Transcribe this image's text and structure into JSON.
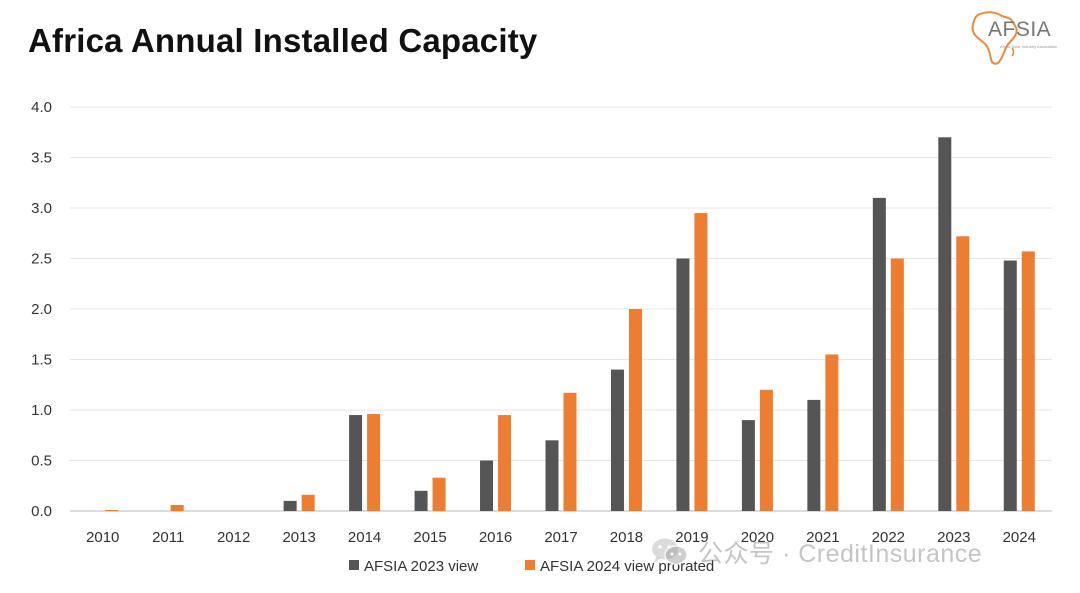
{
  "chart_data": {
    "type": "bar",
    "title": "Africa Annual Installed Capacity",
    "xlabel": "",
    "ylabel": "",
    "categories": [
      "2010",
      "2011",
      "2012",
      "2013",
      "2014",
      "2015",
      "2016",
      "2017",
      "2018",
      "2019",
      "2020",
      "2021",
      "2022",
      "2023",
      "2024"
    ],
    "series": [
      {
        "name": "AFSIA 2023 view",
        "color": "#555555",
        "values": [
          0,
          0,
          0,
          0.1,
          0.95,
          0.2,
          0.5,
          0.7,
          1.4,
          2.5,
          0.9,
          1.1,
          3.1,
          3.7,
          2.48
        ]
      },
      {
        "name": "AFSIA 2024 view prorated",
        "color": "#ED7D31",
        "values": [
          0.01,
          0.06,
          0,
          0.16,
          0.96,
          0.33,
          0.95,
          1.17,
          2.0,
          2.95,
          1.2,
          1.55,
          2.5,
          2.72,
          2.57
        ]
      }
    ],
    "ylim": [
      0,
      4.0
    ],
    "yticks": [
      "0.0",
      "0.5",
      "1.0",
      "1.5",
      "2.0",
      "2.5",
      "3.0",
      "3.5",
      "4.0"
    ],
    "grid": true,
    "legend_position": "bottom"
  },
  "logo": {
    "name": "AFSIA",
    "subtitle": "Africa Solar Industry Association"
  },
  "watermark": {
    "text": "公众号 · CreditInsurance",
    "icon": "wechat-icon"
  }
}
